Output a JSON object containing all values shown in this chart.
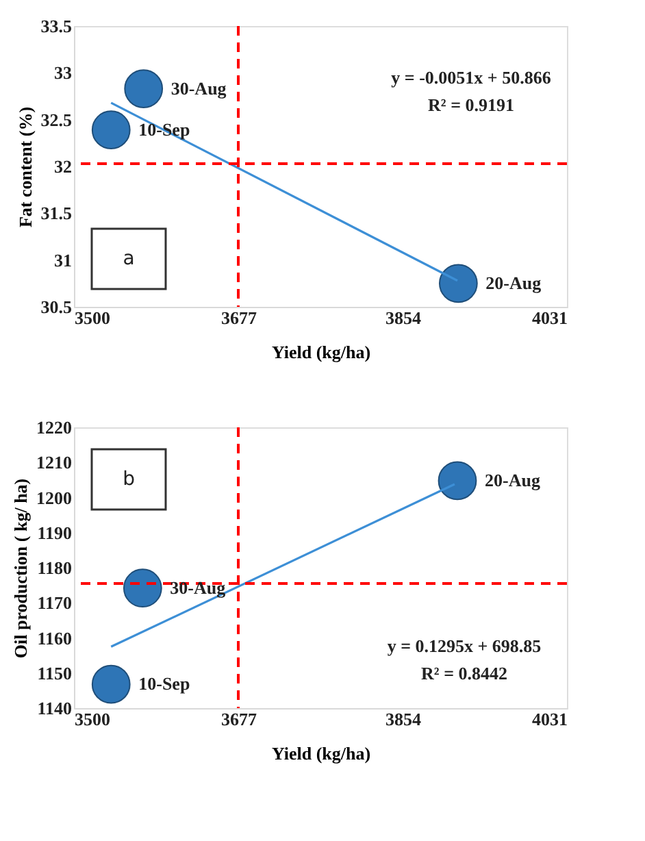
{
  "chart_data": [
    {
      "type": "scatter",
      "xlabel": "Yield (kg/ha)",
      "ylabel": "Fat content (%)",
      "xlim": [
        3500,
        4031
      ],
      "xticks": [
        3500,
        3677,
        3854,
        4031
      ],
      "ylim": [
        30.5,
        33.5
      ],
      "yticks": [
        30.5,
        31,
        31.5,
        32,
        32.5,
        33,
        33.5
      ],
      "grid": false,
      "legend": false,
      "marker": "circle",
      "series": [
        {
          "type": "scatter",
          "color": "#2e75b6",
          "x": [
            3540,
            3575,
            3914
          ],
          "values": [
            32.39,
            32.83,
            30.75
          ]
        },
        {
          "type": "line",
          "color": "#3d8fd6",
          "marker": "none",
          "x": [
            3540,
            3913
          ],
          "values": [
            32.68,
            30.78
          ]
        }
      ],
      "ref_lines": [
        {
          "axis": "x",
          "value": 3677,
          "color": "#ff0000",
          "line_style": "dashed"
        },
        {
          "axis": "y",
          "value": 32.03,
          "color": "#ff0000",
          "line_style": "dashed"
        }
      ],
      "annotations": [
        "y = -0.0051x + 50.866",
        "R² = 0.9191",
        "a",
        {
          "text": "10-Sep",
          "x": 3540,
          "y": 32.39
        },
        {
          "text": "30-Aug",
          "x": 3575,
          "y": 32.83
        },
        {
          "text": "20-Aug",
          "x": 3914,
          "y": 30.75
        }
      ]
    },
    {
      "type": "scatter",
      "xlabel": "Yield (kg/ha)",
      "ylabel": "Oil production ( kg/ ha)",
      "xlim": [
        3500,
        4031
      ],
      "xticks": [
        3500,
        3677,
        3854,
        4031
      ],
      "ylim": [
        1140,
        1220
      ],
      "yticks": [
        1140,
        1150,
        1160,
        1170,
        1180,
        1190,
        1200,
        1210,
        1220
      ],
      "grid": false,
      "legend": false,
      "marker": "circle",
      "series": [
        {
          "type": "scatter",
          "color": "#2e75b6",
          "x": [
            3540,
            3574,
            3913
          ],
          "values": [
            1146.8,
            1174.2,
            1204.8
          ]
        },
        {
          "type": "line",
          "color": "#3d8fd6",
          "marker": "none",
          "x": [
            3540,
            3910
          ],
          "values": [
            1157.5,
            1203.8
          ]
        }
      ],
      "ref_lines": [
        {
          "axis": "x",
          "value": 3677,
          "color": "#ff0000",
          "line_style": "dashed"
        },
        {
          "axis": "y",
          "value": 1175.5,
          "color": "#ff0000",
          "line_style": "dashed"
        }
      ],
      "annotations": [
        "y = 0.1295x + 698.85",
        "R² = 0.8442",
        "b",
        {
          "text": "10-Sep",
          "x": 3540,
          "y": 1146.8
        },
        {
          "text": "30-Aug",
          "x": 3574,
          "y": 1174.2
        },
        {
          "text": "20-Aug",
          "x": 3913,
          "y": 1204.8
        }
      ]
    }
  ]
}
